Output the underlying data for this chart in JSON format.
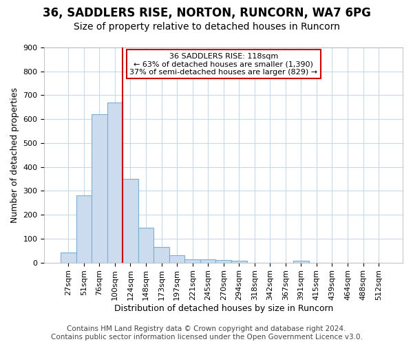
{
  "title1": "36, SADDLERS RISE, NORTON, RUNCORN, WA7 6PG",
  "title2": "Size of property relative to detached houses in Runcorn",
  "xlabel": "Distribution of detached houses by size in Runcorn",
  "ylabel": "Number of detached properties",
  "categories": [
    "27sqm",
    "51sqm",
    "76sqm",
    "100sqm",
    "124sqm",
    "148sqm",
    "173sqm",
    "197sqm",
    "221sqm",
    "245sqm",
    "270sqm",
    "294sqm",
    "318sqm",
    "342sqm",
    "367sqm",
    "391sqm",
    "415sqm",
    "439sqm",
    "464sqm",
    "488sqm",
    "512sqm"
  ],
  "values": [
    42,
    280,
    620,
    670,
    350,
    145,
    65,
    30,
    12,
    12,
    10,
    8,
    0,
    0,
    0,
    8,
    0,
    0,
    0,
    0,
    0
  ],
  "bar_color": "#ccdcee",
  "bar_edge_color": "#7aaed0",
  "bar_edge_width": 0.8,
  "property_line_color": "#cc0000",
  "property_line_index": 4,
  "annotation_text": "36 SADDLERS RISE: 118sqm\n← 63% of detached houses are smaller (1,390)\n37% of semi-detached houses are larger (829) →",
  "ylim": [
    0,
    900
  ],
  "yticks": [
    0,
    100,
    200,
    300,
    400,
    500,
    600,
    700,
    800,
    900
  ],
  "footer_text": "Contains HM Land Registry data © Crown copyright and database right 2024.\nContains public sector information licensed under the Open Government Licence v3.0.",
  "background_color": "#ffffff",
  "plot_background": "#ffffff",
  "grid_color": "#c8d8ec",
  "title1_fontsize": 12,
  "title2_fontsize": 10,
  "xlabel_fontsize": 9,
  "ylabel_fontsize": 9,
  "tick_fontsize": 8,
  "footer_fontsize": 7.5
}
